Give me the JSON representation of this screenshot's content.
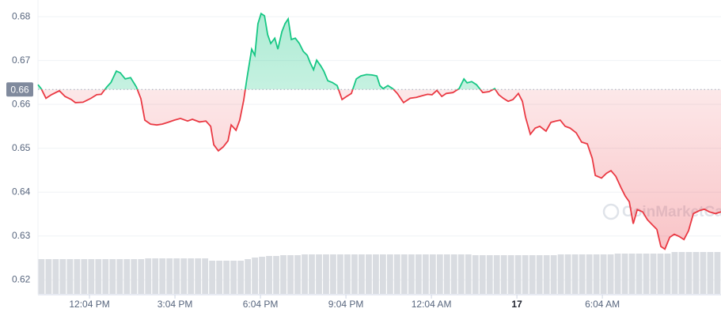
{
  "chart_data": {
    "type": "line",
    "x": [
      10.26,
      10.37,
      10.54,
      10.73,
      11.01,
      11.21,
      11.43,
      11.57,
      11.84,
      12.12,
      12.32,
      12.48,
      12.68,
      12.82,
      13.01,
      13.15,
      13.32,
      13.51,
      13.71,
      13.87,
      14.01,
      14.21,
      14.43,
      14.62,
      14.82,
      15.04,
      15.26,
      15.51,
      15.68,
      15.93,
      16.15,
      16.32,
      16.43,
      16.59,
      16.76,
      16.93,
      17.04,
      17.21,
      17.34,
      17.48,
      17.59,
      17.76,
      17.87,
      17.98,
      18.09,
      18.21,
      18.32,
      18.43,
      18.57,
      18.68,
      18.82,
      18.93,
      19.04,
      19.15,
      19.29,
      19.43,
      19.57,
      19.71,
      19.82,
      19.93,
      20.04,
      20.18,
      20.29,
      20.43,
      20.59,
      20.76,
      20.93,
      21.09,
      21.26,
      21.43,
      21.59,
      21.79,
      21.98,
      22.15,
      22.26,
      22.37,
      22.54,
      22.71,
      22.87,
      23.09,
      23.32,
      23.54,
      23.76,
      23.93,
      24.09,
      24.26,
      24.43,
      24.59,
      24.82,
      25.04,
      25.21,
      25.32,
      25.48,
      25.65,
      25.87,
      26.09,
      26.29,
      26.43,
      26.59,
      26.76,
      26.93,
      27.12,
      27.26,
      27.37,
      27.54,
      27.71,
      27.87,
      28.09,
      28.26,
      28.43,
      28.59,
      28.76,
      28.93,
      29.15,
      29.34,
      29.54,
      29.71,
      29.82,
      30.04,
      30.21,
      30.37,
      30.54,
      30.73,
      30.87,
      31.01,
      31.15,
      31.29,
      31.48,
      31.65,
      31.84,
      31.98,
      32.12,
      32.26,
      32.43,
      32.59,
      32.76,
      32.93,
      33.09,
      33.26,
      33.48,
      33.65,
      33.82,
      34.04,
      34.23
    ],
    "values": [
      0.6645,
      0.6636,
      0.6614,
      0.6622,
      0.6631,
      0.6618,
      0.6611,
      0.6604,
      0.6605,
      0.6614,
      0.6622,
      0.6623,
      0.664,
      0.665,
      0.6676,
      0.6672,
      0.6658,
      0.6661,
      0.664,
      0.6613,
      0.6564,
      0.6555,
      0.6553,
      0.6555,
      0.6559,
      0.6564,
      0.6568,
      0.6562,
      0.6566,
      0.656,
      0.6562,
      0.655,
      0.6508,
      0.6494,
      0.6503,
      0.6517,
      0.6553,
      0.6541,
      0.6564,
      0.6609,
      0.6658,
      0.6726,
      0.6712,
      0.6784,
      0.6807,
      0.6802,
      0.6759,
      0.6739,
      0.6751,
      0.6726,
      0.6766,
      0.6784,
      0.6795,
      0.6748,
      0.6751,
      0.6739,
      0.6721,
      0.6712,
      0.6694,
      0.6679,
      0.6701,
      0.6688,
      0.6676,
      0.6654,
      0.665,
      0.6643,
      0.6611,
      0.6618,
      0.6625,
      0.6658,
      0.6665,
      0.6668,
      0.6667,
      0.6665,
      0.6643,
      0.6636,
      0.6643,
      0.6636,
      0.6625,
      0.6604,
      0.6614,
      0.6616,
      0.662,
      0.6623,
      0.6622,
      0.6632,
      0.6618,
      0.6625,
      0.6627,
      0.6636,
      0.6658,
      0.6649,
      0.6652,
      0.6645,
      0.6627,
      0.6629,
      0.6636,
      0.6622,
      0.6614,
      0.6607,
      0.6611,
      0.6625,
      0.6607,
      0.6571,
      0.6532,
      0.6546,
      0.655,
      0.6539,
      0.6559,
      0.6562,
      0.6564,
      0.655,
      0.6546,
      0.6535,
      0.6514,
      0.651,
      0.6477,
      0.6438,
      0.6432,
      0.6443,
      0.6449,
      0.6436,
      0.6409,
      0.6391,
      0.6378,
      0.6328,
      0.636,
      0.6355,
      0.6337,
      0.6324,
      0.6315,
      0.6276,
      0.627,
      0.6297,
      0.6304,
      0.6299,
      0.6292,
      0.6312,
      0.6351,
      0.6358,
      0.6361,
      0.6355,
      0.6351,
      0.6355
    ],
    "up_color": "#16c784",
    "down_color": "#ea3943",
    "reference": {
      "value": 0.6634,
      "label": "0.66"
    },
    "volume": {
      "color": "#d9dce1",
      "values": [
        44,
        44,
        44,
        44,
        44,
        44,
        44,
        44,
        44,
        44,
        44,
        44,
        44,
        44,
        44,
        45,
        45,
        45,
        45,
        45,
        45,
        45,
        45,
        45,
        42,
        42,
        42,
        42,
        42,
        44,
        46,
        47,
        48,
        48,
        49,
        49,
        49,
        50,
        50,
        50,
        50,
        50,
        50,
        50,
        50,
        50,
        50,
        50,
        50,
        50,
        50,
        50,
        50,
        50,
        50,
        50,
        50,
        50,
        50,
        50,
        50,
        49,
        49,
        49,
        49,
        49,
        49,
        49,
        49,
        49,
        49,
        49,
        49,
        50,
        50,
        50,
        50,
        50,
        50,
        50,
        50,
        51,
        51,
        51,
        51,
        51,
        51,
        51,
        51,
        53,
        53,
        53,
        53,
        53,
        53,
        53
      ]
    },
    "xlim": [
      10.26,
      34.23
    ],
    "ylim": [
      0.6168,
      0.6838
    ],
    "xticks": [
      {
        "value": 12.067,
        "label": "12:04 PM"
      },
      {
        "value": 15.067,
        "label": "3:04 PM"
      },
      {
        "value": 18.067,
        "label": "6:04 PM"
      },
      {
        "value": 21.067,
        "label": "9:04 PM"
      },
      {
        "value": 24.067,
        "label": "12:04 AM"
      },
      {
        "value": 27.067,
        "label": "17"
      },
      {
        "value": 30.067,
        "label": "6:04 AM"
      }
    ],
    "yticks": [
      0.62,
      0.63,
      0.64,
      0.65,
      0.66,
      0.67,
      0.68
    ],
    "grid": true,
    "watermark": "CoinMarketCap"
  }
}
